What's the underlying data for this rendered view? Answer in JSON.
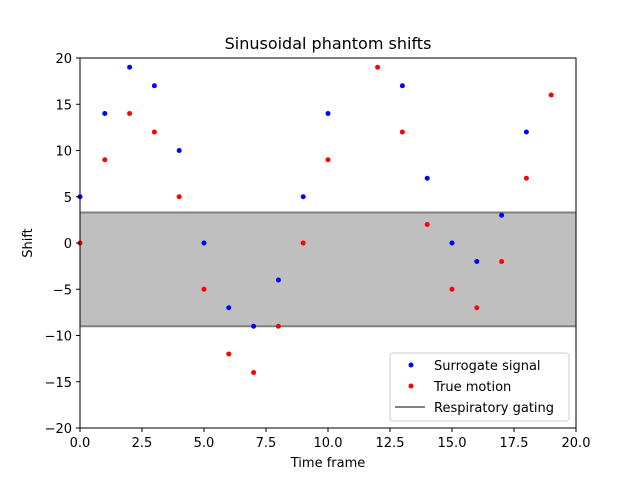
{
  "chart_data": {
    "type": "scatter",
    "title": "Sinusoidal phantom shifts",
    "xlabel": "Time frame",
    "ylabel": "Shift",
    "xlim": [
      0,
      20
    ],
    "ylim": [
      -20,
      20
    ],
    "xticks": [
      0,
      2.5,
      5,
      7.5,
      10,
      12.5,
      15,
      17.5,
      20
    ],
    "xtick_labels": [
      "0.0",
      "2.5",
      "5.0",
      "7.5",
      "10.0",
      "12.5",
      "15.0",
      "17.5",
      "20.0"
    ],
    "yticks": [
      -20,
      -15,
      -10,
      -5,
      0,
      5,
      10,
      15,
      20
    ],
    "ytick_labels": [
      "−20",
      "−15",
      "−10",
      "−5",
      "0",
      "5",
      "10",
      "15",
      "20"
    ],
    "grid": false,
    "legend_position": "lower-right",
    "series": [
      {
        "name": "Surrogate signal",
        "color": "#0000ff",
        "marker": "dot",
        "x": [
          0,
          1,
          2,
          3,
          4,
          5,
          6,
          7,
          8,
          9,
          10,
          13,
          14,
          15,
          16,
          17,
          18
        ],
        "y": [
          5,
          14,
          19,
          17,
          10,
          0,
          -7,
          -9,
          -4,
          5,
          14,
          17,
          7,
          0,
          -2,
          3,
          12
        ]
      },
      {
        "name": "True motion",
        "color": "#ff0000",
        "marker": "dot",
        "x": [
          0,
          1,
          2,
          3,
          4,
          5,
          6,
          7,
          8,
          9,
          10,
          12,
          13,
          14,
          15,
          16,
          17,
          18,
          19
        ],
        "y": [
          0,
          9,
          14,
          12,
          5,
          -5,
          -12,
          -14,
          -9,
          0,
          9,
          19,
          12,
          2,
          -5,
          -7,
          -2,
          7,
          16
        ]
      }
    ],
    "band": {
      "name": "Respiratory gating",
      "line_color": "#808080",
      "fill_color": "#bfbfbf",
      "y_range": [
        -9,
        3.3
      ]
    }
  }
}
